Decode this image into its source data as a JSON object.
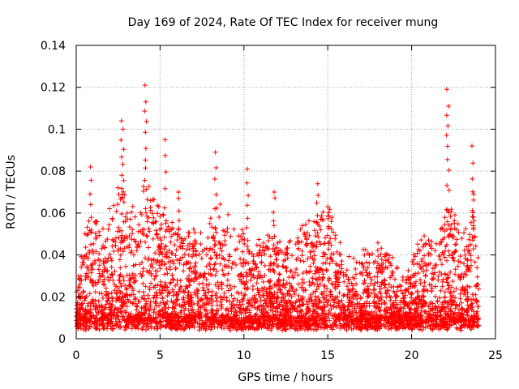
{
  "chart_data": {
    "type": "scatter",
    "title": "Day 169 of 2024, Rate Of TEC Index for receiver mung",
    "xlabel": "GPS time / hours",
    "ylabel": "ROTI / TECUs",
    "xlim": [
      0,
      25
    ],
    "ylim": [
      0,
      0.14
    ],
    "xticks": [
      0,
      5,
      10,
      15,
      20,
      25
    ],
    "yticks": [
      0,
      0.02,
      0.04,
      0.06,
      0.08,
      0.1,
      0.12,
      0.14
    ],
    "xtick_labels": [
      "0",
      "5",
      "10",
      "15",
      "20",
      "25"
    ],
    "ytick_labels": [
      "0",
      "0.02",
      "0.04",
      "0.06",
      "0.08",
      "0.1",
      "0.12",
      "0.14"
    ],
    "grid": true,
    "marker": "+",
    "color": "#ff0000",
    "x_range_observed": [
      0,
      24
    ],
    "peaks": [
      {
        "x": 0.85,
        "y": 0.082
      },
      {
        "x": 2.7,
        "y": 0.104
      },
      {
        "x": 2.8,
        "y": 0.1
      },
      {
        "x": 4.1,
        "y": 0.121
      },
      {
        "x": 4.15,
        "y": 0.113
      },
      {
        "x": 5.3,
        "y": 0.095
      },
      {
        "x": 6.1,
        "y": 0.07
      },
      {
        "x": 8.3,
        "y": 0.089
      },
      {
        "x": 10.2,
        "y": 0.081
      },
      {
        "x": 11.8,
        "y": 0.07
      },
      {
        "x": 14.4,
        "y": 0.074
      },
      {
        "x": 15.0,
        "y": 0.063
      },
      {
        "x": 22.1,
        "y": 0.119
      },
      {
        "x": 22.2,
        "y": 0.111
      },
      {
        "x": 23.6,
        "y": 0.092
      },
      {
        "x": 23.7,
        "y": 0.069
      }
    ],
    "envelope": [
      {
        "x": 0,
        "y": 0.02
      },
      {
        "x": 0.8,
        "y": 0.06
      },
      {
        "x": 1.5,
        "y": 0.05
      },
      {
        "x": 2.7,
        "y": 0.07
      },
      {
        "x": 3.5,
        "y": 0.06
      },
      {
        "x": 4.2,
        "y": 0.075
      },
      {
        "x": 5.2,
        "y": 0.055
      },
      {
        "x": 6.5,
        "y": 0.05
      },
      {
        "x": 7.5,
        "y": 0.045
      },
      {
        "x": 8.3,
        "y": 0.065
      },
      {
        "x": 9.5,
        "y": 0.05
      },
      {
        "x": 10.5,
        "y": 0.04
      },
      {
        "x": 11.5,
        "y": 0.045
      },
      {
        "x": 12.5,
        "y": 0.04
      },
      {
        "x": 13.5,
        "y": 0.05
      },
      {
        "x": 14.5,
        "y": 0.055
      },
      {
        "x": 15.0,
        "y": 0.06
      },
      {
        "x": 16.0,
        "y": 0.035
      },
      {
        "x": 17.5,
        "y": 0.04
      },
      {
        "x": 18.5,
        "y": 0.04
      },
      {
        "x": 19.5,
        "y": 0.025
      },
      {
        "x": 20.5,
        "y": 0.045
      },
      {
        "x": 21.5,
        "y": 0.045
      },
      {
        "x": 22.2,
        "y": 0.06
      },
      {
        "x": 23.0,
        "y": 0.05
      },
      {
        "x": 23.7,
        "y": 0.055
      },
      {
        "x": 24.0,
        "y": 0.03
      }
    ]
  }
}
